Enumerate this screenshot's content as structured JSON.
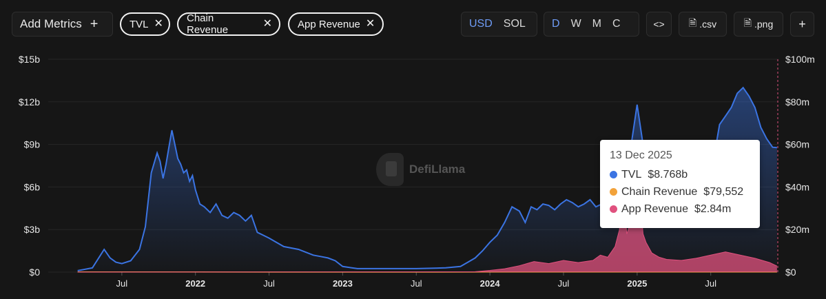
{
  "toolbar": {
    "add_metrics_label": "Add Metrics",
    "metrics": [
      {
        "label": "TVL",
        "color": "#3b74e3"
      },
      {
        "label": "Chain Revenue",
        "color": "#f2a23a"
      },
      {
        "label": "App Revenue",
        "color": "#e0517e"
      }
    ],
    "currency": {
      "options": [
        "USD",
        "SOL"
      ],
      "selected": "USD"
    },
    "granularity": {
      "options": [
        "D",
        "W",
        "M",
        "C"
      ],
      "selected": "D"
    },
    "embed_label": "<>",
    "csv_label": ".csv",
    "png_label": ".png",
    "add_label": "+"
  },
  "watermark": "DefiLlama",
  "chart_data": {
    "type": "area",
    "x_ticks": [
      "Jul",
      "2022",
      "Jul",
      "2023",
      "Jul",
      "2024",
      "Jul",
      "2025",
      "Jul"
    ],
    "y_left": {
      "ticks": [
        "$0",
        "$3b",
        "$6b",
        "$9b",
        "$12b",
        "$15b"
      ],
      "range": [
        0,
        15
      ]
    },
    "y_right": {
      "ticks": [
        "$0",
        "$20m",
        "$40m",
        "$60m",
        "$80m",
        "$100m"
      ],
      "range": [
        0,
        100
      ]
    },
    "grid": true,
    "series": [
      {
        "name": "TVL",
        "axis": "left",
        "color": "#3b74e3",
        "x": [
          2021.2,
          2021.3,
          2021.38,
          2021.42,
          2021.46,
          2021.5,
          2021.56,
          2021.62,
          2021.66,
          2021.7,
          2021.74,
          2021.76,
          2021.78,
          2021.8,
          2021.82,
          2021.84,
          2021.86,
          2021.88,
          2021.9,
          2021.92,
          2021.94,
          2021.96,
          2021.98,
          2022.0,
          2022.03,
          2022.06,
          2022.1,
          2022.14,
          2022.18,
          2022.22,
          2022.26,
          2022.3,
          2022.34,
          2022.38,
          2022.42,
          2022.46,
          2022.5,
          2022.6,
          2022.7,
          2022.8,
          2022.85,
          2022.9,
          2022.95,
          2023.0,
          2023.1,
          2023.3,
          2023.5,
          2023.7,
          2023.8,
          2023.85,
          2023.9,
          2023.95,
          2024.0,
          2024.05,
          2024.1,
          2024.15,
          2024.2,
          2024.24,
          2024.28,
          2024.32,
          2024.36,
          2024.4,
          2024.44,
          2024.48,
          2024.52,
          2024.56,
          2024.6,
          2024.64,
          2024.68,
          2024.72,
          2024.76,
          2024.8,
          2024.84,
          2024.88,
          2024.92,
          2024.96,
          2025.0,
          2025.04,
          2025.08,
          2025.12,
          2025.16,
          2025.2,
          2025.24,
          2025.28,
          2025.32,
          2025.36,
          2025.4,
          2025.44,
          2025.48,
          2025.52,
          2025.56,
          2025.6,
          2025.64,
          2025.68,
          2025.72,
          2025.76,
          2025.8,
          2025.84,
          2025.88,
          2025.92,
          2025.95
        ],
        "y": [
          0.1,
          0.3,
          1.6,
          1.0,
          0.7,
          0.6,
          0.8,
          1.6,
          3.2,
          7.0,
          8.4,
          7.8,
          6.6,
          7.6,
          8.8,
          10.0,
          9.0,
          8.0,
          7.6,
          7.0,
          7.2,
          6.4,
          6.8,
          5.8,
          4.8,
          4.6,
          4.2,
          4.8,
          4.0,
          3.8,
          4.2,
          4.0,
          3.6,
          4.0,
          2.8,
          2.6,
          2.4,
          1.8,
          1.6,
          1.2,
          1.1,
          1.0,
          0.8,
          0.4,
          0.25,
          0.25,
          0.25,
          0.3,
          0.4,
          0.7,
          1.0,
          1.5,
          2.1,
          2.6,
          3.5,
          4.6,
          4.3,
          3.5,
          4.6,
          4.4,
          4.8,
          4.7,
          4.4,
          4.8,
          5.1,
          4.9,
          4.6,
          4.8,
          5.1,
          4.6,
          4.8,
          5.4,
          5.0,
          5.2,
          5.8,
          9.0,
          11.8,
          9.0,
          6.8,
          5.8,
          5.4,
          5.6,
          5.6,
          6.4,
          5.8,
          5.6,
          6.2,
          6.0,
          6.6,
          8.0,
          10.4,
          11.0,
          11.6,
          12.6,
          13.0,
          12.4,
          11.6,
          10.2,
          9.4,
          8.8,
          8.77
        ]
      },
      {
        "name": "Chain Revenue",
        "axis": "right",
        "color": "#f2a23a",
        "x": [
          2021.2,
          2022.0,
          2023.0,
          2024.0,
          2025.0,
          2025.95
        ],
        "y": [
          0.05,
          0.08,
          0.03,
          0.05,
          0.1,
          0.08
        ]
      },
      {
        "name": "App Revenue",
        "axis": "right",
        "color": "#e0517e",
        "x": [
          2021.2,
          2023.9,
          2024.0,
          2024.1,
          2024.2,
          2024.3,
          2024.4,
          2024.5,
          2024.6,
          2024.7,
          2024.75,
          2024.8,
          2024.85,
          2024.88,
          2024.9,
          2024.93,
          2024.96,
          2024.98,
          2025.0,
          2025.02,
          2025.04,
          2025.06,
          2025.1,
          2025.15,
          2025.2,
          2025.3,
          2025.4,
          2025.5,
          2025.6,
          2025.7,
          2025.8,
          2025.9,
          2025.95
        ],
        "y": [
          0,
          0.2,
          0.8,
          1.6,
          3.0,
          5.0,
          4.0,
          5.5,
          4.5,
          5.5,
          8.0,
          7.0,
          12.0,
          20.0,
          38.0,
          18.0,
          24.0,
          55.0,
          22.0,
          36.0,
          18.0,
          14.0,
          9.0,
          7.0,
          6.0,
          5.5,
          6.5,
          8.0,
          9.5,
          8.0,
          6.5,
          4.5,
          2.84
        ]
      }
    ],
    "tooltip": {
      "date": "13 Dec 2025",
      "rows": [
        {
          "label": "TVL",
          "value": "$8.768b",
          "color": "#3b74e3"
        },
        {
          "label": "Chain Revenue",
          "value": "$79,552",
          "color": "#f2a23a"
        },
        {
          "label": "App Revenue",
          "value": "$2.84m",
          "color": "#e0517e"
        }
      ]
    }
  }
}
